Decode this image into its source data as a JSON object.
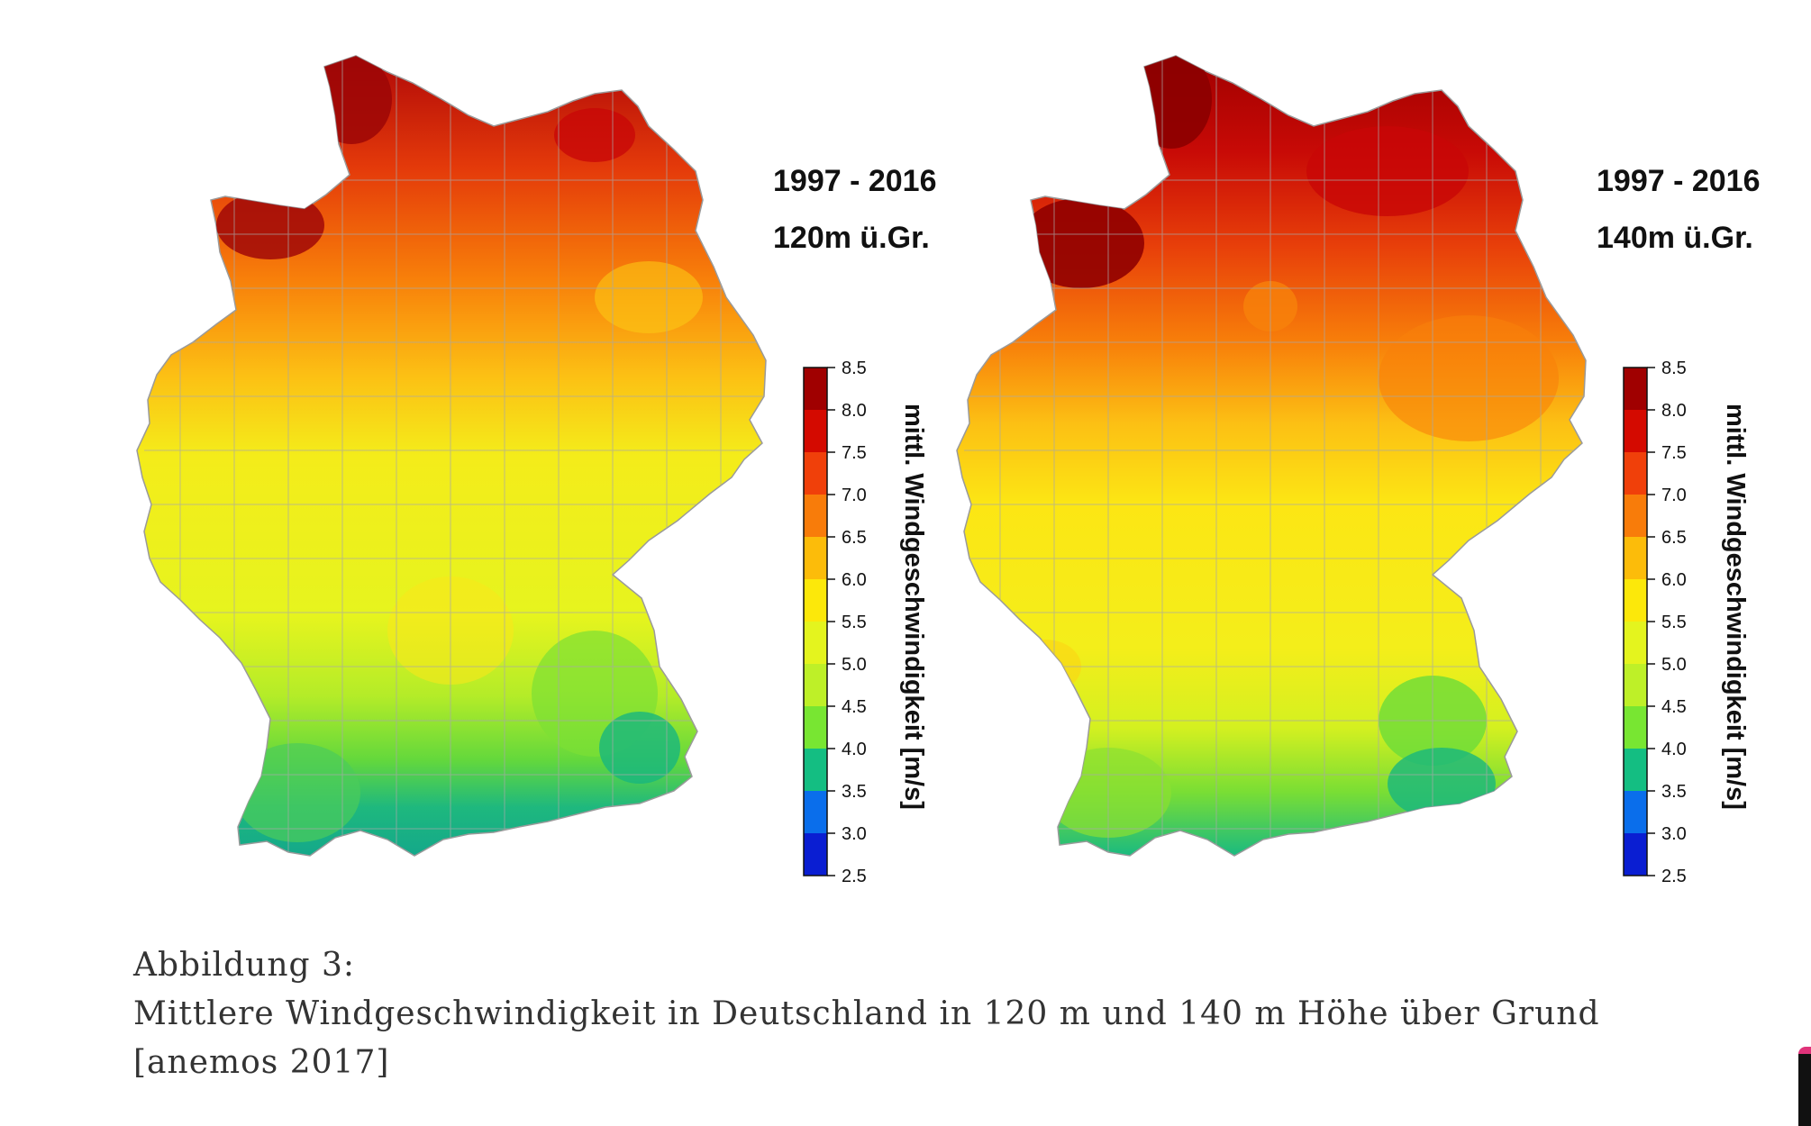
{
  "panels": [
    {
      "period": "1997 - 2016",
      "height_label": "120m ü.Gr.",
      "unit_label": "mittl. Windgeschwindigkeit [m/s]"
    },
    {
      "period": "1997 - 2016",
      "height_label": "140m ü.Gr.",
      "unit_label": "mittl. Windgeschwindigkeit [m/s]"
    }
  ],
  "legend": {
    "ticks": [
      "8.5",
      "8.0",
      "7.5",
      "7.0",
      "6.5",
      "6.0",
      "5.5",
      "5.0",
      "4.5",
      "4.0",
      "3.5",
      "3.0",
      "2.5"
    ],
    "colors": [
      "#a00000",
      "#d40a00",
      "#f0400a",
      "#f87c0a",
      "#fcbc0a",
      "#fce80a",
      "#e4f41e",
      "#bef028",
      "#78e632",
      "#14be82",
      "#0a6eeb",
      "#0a1ed2"
    ]
  },
  "caption": {
    "line1": "Abbildung 3:",
    "line2": "Mittlere Windgeschwindigkeit in Deutschland in 120 m und 140 m Höhe über Grund",
    "line3": "[anemos 2017]"
  }
}
